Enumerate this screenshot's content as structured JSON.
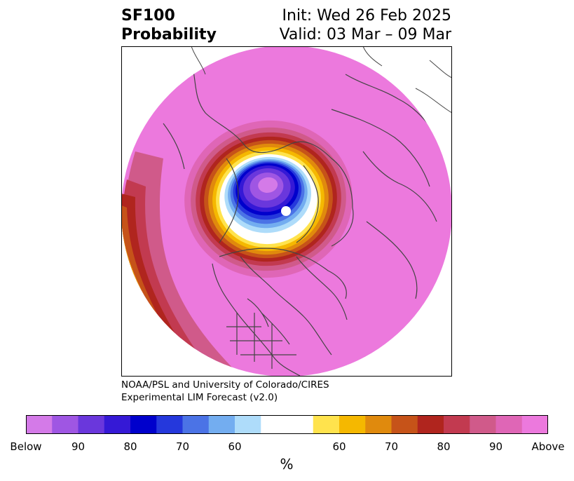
{
  "header": {
    "title_line1": "SF100",
    "title_line2": "Probability",
    "init": "Init: Wed 26 Feb 2025",
    "valid": "Valid: 03 Mar – 09 Mar"
  },
  "credit": {
    "line1": "NOAA/PSL and University of Colorado/CIRES",
    "line2": "Experimental LIM Forecast (v2.0)"
  },
  "colorbar": {
    "colors": [
      "#d47ae8",
      "#9f56e3",
      "#6a37dc",
      "#3519d6",
      "#0000cc",
      "#2538dc",
      "#4b73e6",
      "#73adf0",
      "#aedcfa",
      "#ffffff",
      "#ffe34d",
      "#f5b800",
      "#e08a0d",
      "#c65319",
      "#b0251e",
      "#c23a50",
      "#d05a8a",
      "#df66b6",
      "#ec79dd"
    ],
    "weights": [
      1,
      1,
      1,
      1,
      1,
      1,
      1,
      1,
      1,
      2,
      1,
      1,
      1,
      1,
      1,
      1,
      1,
      1,
      1
    ],
    "ticks": [
      "Below",
      "90",
      "80",
      "70",
      "60",
      "60",
      "70",
      "80",
      "90",
      "Above"
    ],
    "unit": "%"
  }
}
